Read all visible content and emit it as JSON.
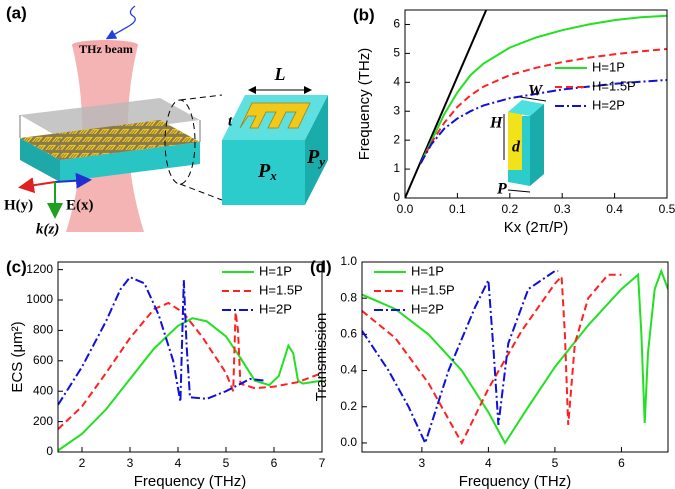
{
  "illustration": {
    "label": "(a)",
    "beam": "THz beam",
    "dims": {
      "L": "L",
      "t": "t",
      "Px": {
        "base": "P",
        "sub": "x"
      },
      "Py": {
        "base": "P",
        "sub": "y"
      }
    },
    "axes": {
      "h": "H(y)",
      "e": "E(x)",
      "k": "k(z)"
    }
  },
  "chart_data": [
    {
      "type": "line",
      "label": "(b)",
      "xlabel": "Kx (2π/P)",
      "ylabel": "Frequency (THz)",
      "xlim": [
        0,
        0.5
      ],
      "xticks": [
        {
          "value": 0,
          "label": "0.0"
        },
        0.1,
        0.2,
        0.3,
        0.4,
        0.5
      ],
      "ylim": [
        0,
        6.5
      ],
      "yticks": [
        0,
        1,
        2,
        3,
        4,
        5,
        6
      ],
      "legend": "center right",
      "annotations": [
        "H",
        "W",
        "d",
        "P"
      ],
      "series": [
        {
          "color": "#000000",
          "linestyle": "solid",
          "x": [
            0,
            0.155
          ],
          "values": [
            0,
            6.5
          ]
        },
        {
          "name": "H=1P",
          "color": "#22e022",
          "linestyle": "solid",
          "x": [
            0.03,
            0.05,
            0.075,
            0.1,
            0.125,
            0.15,
            0.2,
            0.25,
            0.3,
            0.35,
            0.4,
            0.45,
            0.5
          ],
          "values": [
            1.2,
            1.95,
            2.9,
            3.65,
            4.25,
            4.65,
            5.2,
            5.55,
            5.8,
            6.0,
            6.15,
            6.25,
            6.3
          ]
        },
        {
          "name": "H=1.5P",
          "color": "#ff2020",
          "linestyle": "dashed",
          "x": [
            0.03,
            0.05,
            0.075,
            0.1,
            0.125,
            0.15,
            0.2,
            0.25,
            0.3,
            0.35,
            0.4,
            0.45,
            0.5
          ],
          "values": [
            1.2,
            1.9,
            2.6,
            3.15,
            3.55,
            3.85,
            4.25,
            4.5,
            4.7,
            4.85,
            4.97,
            5.07,
            5.15
          ]
        },
        {
          "name": "H=2P",
          "color": "#1010dd",
          "linestyle": "dashdot",
          "x": [
            0.03,
            0.05,
            0.075,
            0.1,
            0.125,
            0.15,
            0.2,
            0.25,
            0.3,
            0.35,
            0.4,
            0.45,
            0.5
          ],
          "values": [
            1.2,
            1.85,
            2.4,
            2.75,
            3.0,
            3.2,
            3.45,
            3.6,
            3.75,
            3.85,
            3.95,
            4.02,
            4.08
          ]
        }
      ]
    },
    {
      "type": "line",
      "label": "(c)",
      "xlabel": "Frequency (THz)",
      "ylabel": "ECS (μm²)",
      "xlim": [
        1.5,
        7
      ],
      "xticks": [
        2,
        3,
        4,
        5,
        6,
        7
      ],
      "ylim": [
        0,
        1250
      ],
      "yticks": [
        0,
        200,
        400,
        600,
        800,
        1000,
        1200
      ],
      "legend": "upper right",
      "series": [
        {
          "name": "H=1P",
          "color": "#22e022",
          "linestyle": "solid",
          "x": [
            1.5,
            2,
            2.5,
            3,
            3.5,
            4,
            4.3,
            4.6,
            5,
            5.3,
            5.6,
            5.9,
            6.1,
            6.3,
            6.4,
            6.5,
            6.6,
            7
          ],
          "values": [
            10,
            120,
            280,
            480,
            680,
            830,
            880,
            860,
            760,
            620,
            470,
            440,
            500,
            700,
            650,
            470,
            450,
            470
          ]
        },
        {
          "name": "H=1.5P",
          "color": "#ff2020",
          "linestyle": "dashed",
          "x": [
            1.5,
            2,
            2.5,
            3,
            3.5,
            3.8,
            4.1,
            4.5,
            5,
            5.15,
            5.2,
            5.25,
            5.3,
            5.6,
            6,
            6.5,
            7
          ],
          "values": [
            150,
            300,
            520,
            750,
            940,
            980,
            920,
            760,
            520,
            400,
            920,
            800,
            450,
            420,
            430,
            460,
            520
          ]
        },
        {
          "name": "H=2P",
          "color": "#1010dd",
          "linestyle": "dashdot",
          "x": [
            1.5,
            2,
            2.5,
            2.8,
            3,
            3.3,
            3.6,
            3.9,
            4.05,
            4.12,
            4.18,
            4.25,
            4.6,
            5,
            5.5,
            5.8
          ],
          "values": [
            310,
            560,
            860,
            1070,
            1150,
            1110,
            900,
            600,
            330,
            1130,
            700,
            360,
            350,
            400,
            480,
            470
          ]
        }
      ]
    },
    {
      "type": "line",
      "label": "(d)",
      "xlabel": "Frequency (THz)",
      "ylabel": "Transmission",
      "xlim": [
        2.1,
        6.7
      ],
      "xticks": [
        3,
        4,
        5,
        6
      ],
      "ylim": [
        -0.05,
        1.0
      ],
      "yticks": [
        {
          "value": 0,
          "label": "0.0"
        },
        0.2,
        0.4,
        0.6,
        0.8,
        {
          "value": 1,
          "label": "1.0"
        }
      ],
      "legend": "upper left",
      "series": [
        {
          "name": "H=1P",
          "color": "#22e022",
          "linestyle": "solid",
          "x": [
            2.1,
            2.6,
            3.1,
            3.6,
            4.0,
            4.25,
            4.6,
            5.0,
            5.5,
            6.0,
            6.25,
            6.3,
            6.35,
            6.4,
            6.5,
            6.6,
            6.7
          ],
          "values": [
            0.82,
            0.74,
            0.6,
            0.4,
            0.17,
            0.0,
            0.2,
            0.42,
            0.65,
            0.85,
            0.93,
            0.6,
            0.11,
            0.5,
            0.85,
            0.95,
            0.85
          ]
        },
        {
          "name": "H=1.5P",
          "color": "#ff2020",
          "linestyle": "dashed",
          "x": [
            2.1,
            2.6,
            3.1,
            3.6,
            4.0,
            4.5,
            5.0,
            5.1,
            5.15,
            5.2,
            5.3,
            5.5,
            5.8,
            6.0
          ],
          "values": [
            0.73,
            0.58,
            0.33,
            0.0,
            0.3,
            0.62,
            0.88,
            0.92,
            0.6,
            0.1,
            0.55,
            0.8,
            0.93,
            0.93
          ]
        },
        {
          "name": "H=2P",
          "color": "#1010dd",
          "linestyle": "dashdot",
          "x": [
            2.1,
            2.5,
            2.8,
            3.05,
            3.4,
            3.8,
            4.0,
            4.08,
            4.15,
            4.3,
            4.6,
            5.0,
            5.05
          ],
          "values": [
            0.62,
            0.4,
            0.2,
            0.0,
            0.4,
            0.75,
            0.9,
            0.5,
            0.1,
            0.55,
            0.85,
            0.95,
            0.95
          ]
        }
      ]
    }
  ]
}
